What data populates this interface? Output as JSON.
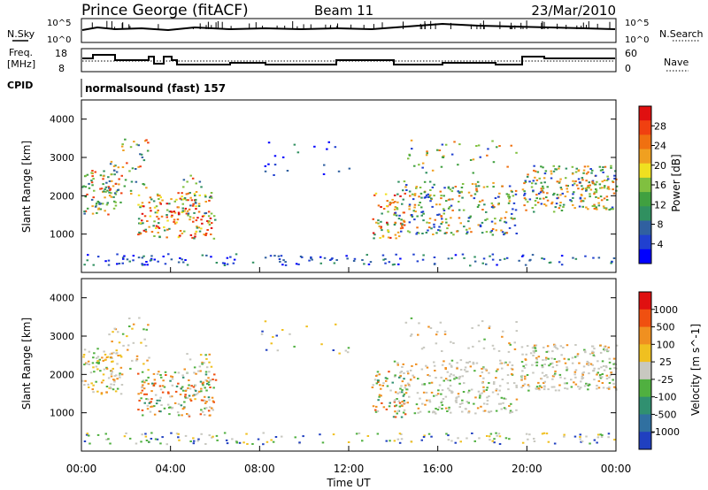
{
  "header": {
    "station": "Prince George (fitACF)",
    "beam": "Beam 11",
    "date": "23/Mar/2010"
  },
  "panels": {
    "noise": {
      "left_label": "N.Sky",
      "right_label": "N.Search",
      "left_ticks": [
        "10^5",
        "10^0"
      ],
      "right_ticks": [
        "10^5",
        "10^0"
      ]
    },
    "freq": {
      "left_label_top": "Freq.",
      "left_label_bottom": "[MHz]",
      "right_label": "Nave",
      "left_ticks": [
        "18",
        "8"
      ],
      "right_ticks": [
        "60",
        "0"
      ]
    },
    "cpid": {
      "label": "CPID",
      "text": "normalsound (fast) 157"
    }
  },
  "chart_data": [
    {
      "type": "heatmap",
      "parameter": "Power",
      "ylabel": "Slant Range [km]",
      "colorbar_label": "Power [dB]",
      "colorbar_ticks": [
        "28",
        "24",
        "20",
        "16",
        "12",
        "8",
        "4"
      ],
      "colors": [
        "#0000ff",
        "#2040d0",
        "#3060a0",
        "#309060",
        "#40a040",
        "#80c040",
        "#f0e020",
        "#f0a020",
        "#f07010",
        "#f04010",
        "#e01010"
      ],
      "yticks": [
        "1000",
        "2000",
        "3000",
        "4000"
      ],
      "ylim": [
        0,
        4500
      ],
      "xlim": [
        "00:00",
        "24:00"
      ]
    },
    {
      "type": "heatmap",
      "parameter": "Velocity",
      "ylabel": "Slant Range [km]",
      "colorbar_label": "Velocity [m s^-1]",
      "colorbar_ticks": [
        "1000",
        "500",
        "100",
        "25",
        "-25",
        "-100",
        "-500",
        "-1000"
      ],
      "colors": [
        "#2040c0",
        "#3070a0",
        "#309070",
        "#50b040",
        "#c8c8c0",
        "#f0c020",
        "#f09020",
        "#f05010",
        "#e01010"
      ],
      "yticks": [
        "1000",
        "2000",
        "3000",
        "4000"
      ],
      "ylim": [
        0,
        4500
      ],
      "xlim": [
        "00:00",
        "24:00"
      ]
    }
  ],
  "xaxis": {
    "label": "Time UT",
    "ticks": [
      "00:00",
      "04:00",
      "08:00",
      "12:00",
      "16:00",
      "20:00",
      "00:00"
    ]
  }
}
